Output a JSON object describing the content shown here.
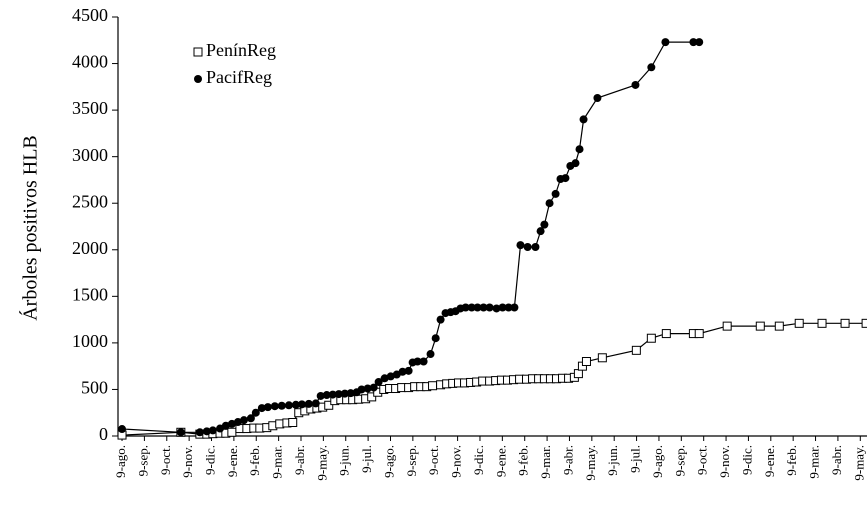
{
  "chart_data": {
    "type": "line",
    "y_label": "Árboles positivos HLB",
    "xlim": [
      -0.18,
      33.3
    ],
    "xticks": [
      {
        "value": 0,
        "label": "9-ago."
      },
      {
        "value": 1,
        "label": "9-sep."
      },
      {
        "value": 2,
        "label": "9-oct."
      },
      {
        "value": 3,
        "label": "9-nov."
      },
      {
        "value": 4,
        "label": "9-dic."
      },
      {
        "value": 5,
        "label": "9-ene."
      },
      {
        "value": 6,
        "label": "9-feb."
      },
      {
        "value": 7,
        "label": "9-mar."
      },
      {
        "value": 8,
        "label": "9-abr."
      },
      {
        "value": 9,
        "label": "9-may."
      },
      {
        "value": 10,
        "label": "9-jun."
      },
      {
        "value": 11,
        "label": "9-jul."
      },
      {
        "value": 12,
        "label": "9-ago."
      },
      {
        "value": 13,
        "label": "9-sep."
      },
      {
        "value": 14,
        "label": "9-oct."
      },
      {
        "value": 15,
        "label": "9-nov."
      },
      {
        "value": 16,
        "label": "9-dic."
      },
      {
        "value": 17,
        "label": "9-ene."
      },
      {
        "value": 18,
        "label": "9-feb."
      },
      {
        "value": 19,
        "label": "9-mar."
      },
      {
        "value": 20,
        "label": "9-abr."
      },
      {
        "value": 21,
        "label": "9-may."
      },
      {
        "value": 22,
        "label": "9-jun."
      },
      {
        "value": 23,
        "label": "9-jul."
      },
      {
        "value": 24,
        "label": "9-ago."
      },
      {
        "value": 25,
        "label": "9-sep."
      },
      {
        "value": 26,
        "label": "9-oct."
      },
      {
        "value": 27,
        "label": "9-nov."
      },
      {
        "value": 28,
        "label": "9-dic."
      },
      {
        "value": 29,
        "label": "9-ene."
      },
      {
        "value": 30,
        "label": "9-feb."
      },
      {
        "value": 31,
        "label": "9-mar."
      },
      {
        "value": 32,
        "label": "9-abr."
      },
      {
        "value": 33,
        "label": "9-may."
      }
    ],
    "ylim": [
      0,
      4500
    ],
    "yticks": [
      0,
      500,
      1000,
      1500,
      2000,
      2500,
      3000,
      3500,
      4000,
      4500
    ],
    "series": [
      {
        "name": "PenínReg",
        "color": "#000000",
        "marker": "square",
        "x": [
          0,
          2.63,
          3.48,
          3.79,
          4.06,
          4.38,
          4.64,
          4.91,
          5.27,
          5.58,
          5.89,
          6.16,
          6.47,
          6.74,
          7.05,
          7.37,
          7.63,
          7.9,
          8.17,
          8.44,
          8.71,
          8.97,
          9.24,
          9.51,
          9.78,
          10.04,
          10.31,
          10.58,
          10.89,
          11.16,
          11.43,
          11.7,
          11.96,
          12.23,
          12.5,
          12.81,
          13.08,
          13.35,
          13.62,
          13.88,
          14.24,
          14.51,
          14.78,
          15.04,
          15.31,
          15.58,
          15.85,
          16.12,
          16.43,
          16.7,
          16.96,
          17.23,
          17.5,
          17.77,
          18.08,
          18.35,
          18.62,
          18.88,
          19.15,
          19.42,
          19.69,
          19.96,
          20.22,
          20.4,
          20.58,
          20.76,
          21.47,
          22.99,
          23.66,
          24.33,
          25.54,
          25.8,
          27.05,
          28.53,
          29.38,
          30.27,
          31.29,
          32.32,
          33.26
        ],
        "values": [
          10,
          40,
          20,
          20,
          25,
          30,
          30,
          40,
          80,
          80,
          85,
          85,
          90,
          110,
          130,
          140,
          145,
          250,
          270,
          290,
          300,
          310,
          330,
          380,
          390,
          390,
          390,
          395,
          400,
          420,
          470,
          500,
          510,
          510,
          520,
          520,
          530,
          530,
          530,
          540,
          550,
          560,
          565,
          570,
          570,
          575,
          580,
          590,
          590,
          595,
          600,
          600,
          605,
          610,
          610,
          615,
          615,
          615,
          615,
          615,
          620,
          620,
          630,
          670,
          750,
          800,
          840,
          920,
          1050,
          1100,
          1100,
          1100,
          1180,
          1180,
          1180,
          1210,
          1210,
          1210,
          1210
        ]
      },
      {
        "name": "PacifReg",
        "color": "#000000",
        "marker": "circle",
        "x": [
          0,
          2.63,
          3.48,
          3.79,
          4.06,
          4.38,
          4.64,
          4.91,
          5.18,
          5.45,
          5.76,
          5.98,
          6.25,
          6.52,
          6.83,
          7.14,
          7.46,
          7.77,
          8.04,
          8.35,
          8.66,
          8.88,
          9.15,
          9.42,
          9.69,
          9.96,
          10.22,
          10.49,
          10.71,
          10.98,
          11.25,
          11.47,
          11.74,
          12.01,
          12.28,
          12.54,
          12.81,
          12.99,
          13.21,
          13.48,
          13.79,
          14.02,
          14.24,
          14.46,
          14.69,
          14.91,
          15.13,
          15.36,
          15.63,
          15.89,
          16.16,
          16.43,
          16.74,
          17.01,
          17.28,
          17.54,
          17.81,
          18.13,
          18.48,
          18.71,
          18.88,
          19.11,
          19.38,
          19.6,
          19.82,
          20.04,
          20.27,
          20.45,
          20.63,
          21.25,
          22.95,
          23.66,
          24.29,
          25.54,
          25.8
        ],
        "values": [
          75,
          40,
          40,
          50,
          60,
          80,
          110,
          130,
          150,
          170,
          190,
          250,
          300,
          310,
          320,
          325,
          330,
          335,
          340,
          345,
          350,
          430,
          440,
          445,
          450,
          455,
          460,
          470,
          500,
          510,
          520,
          580,
          620,
          640,
          660,
          690,
          700,
          790,
          800,
          800,
          880,
          1050,
          1250,
          1320,
          1330,
          1340,
          1370,
          1380,
          1380,
          1380,
          1380,
          1380,
          1370,
          1380,
          1380,
          1380,
          2050,
          2030,
          2030,
          2200,
          2270,
          2500,
          2600,
          2760,
          2770,
          2900,
          2930,
          3080,
          3400,
          3630,
          3770,
          3960,
          4230,
          4230,
          4230
        ]
      }
    ]
  }
}
